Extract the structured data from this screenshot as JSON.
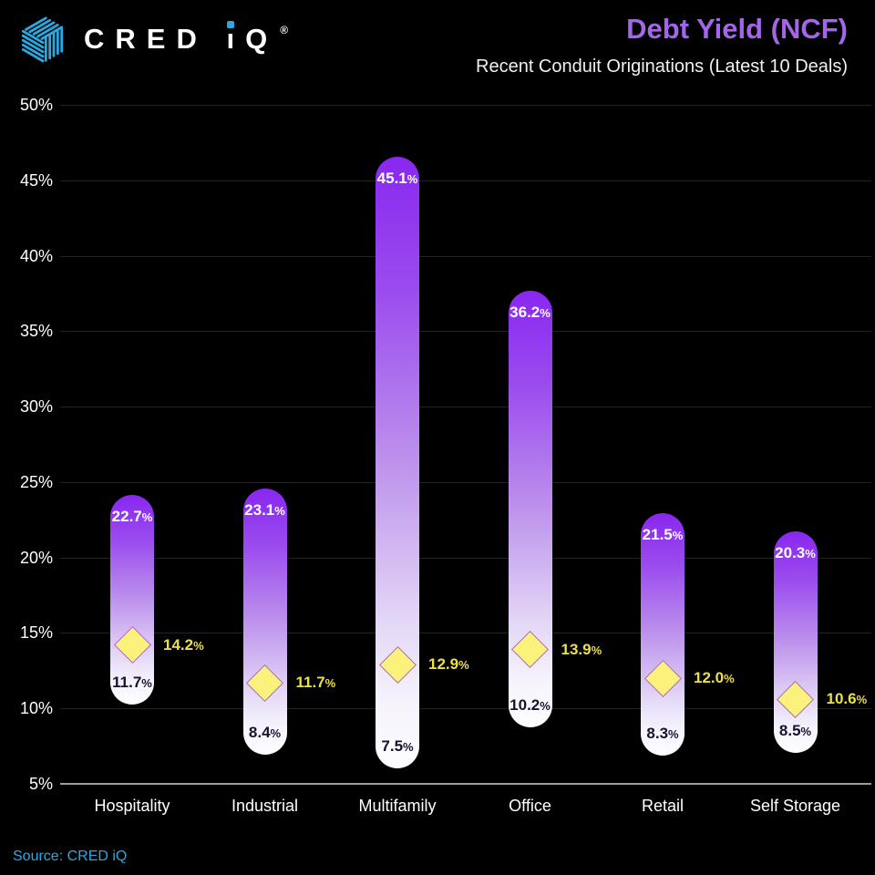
{
  "header": {
    "logo": {
      "icon": "cred-iq-hexagon-logo-icon",
      "cred": "CRED ",
      "i_stem": "ı",
      "q": "Q",
      "registered": "®",
      "accent": "#29A9E1"
    }
  },
  "chart_data": {
    "type": "range-bar",
    "title": "Debt Yield (NCF)",
    "subtitle": "Recent Conduit Originations (Latest 10 Deals)",
    "categories": [
      "Hospitality",
      "Industrial",
      "Multifamily",
      "Office",
      "Retail",
      "Self Storage"
    ],
    "series": [
      {
        "name": "max",
        "values": [
          22.7,
          23.1,
          45.1,
          36.2,
          21.5,
          20.3
        ],
        "labels": [
          "22.7%",
          "23.1%",
          "45.1%",
          "36.2%",
          "21.5%",
          "20.3%"
        ]
      },
      {
        "name": "min",
        "values": [
          11.7,
          8.4,
          7.5,
          10.2,
          8.3,
          8.5
        ],
        "labels": [
          "11.7%",
          "8.4%",
          "7.5%",
          "10.2%",
          "8.3%",
          "8.5%"
        ]
      },
      {
        "name": "diamond",
        "values": [
          14.2,
          11.7,
          12.9,
          13.9,
          12.0,
          10.6
        ],
        "labels": [
          "14.2%",
          "11.7%",
          "12.9%",
          "13.9%",
          "12.0%",
          "10.6%"
        ]
      }
    ],
    "ylim": [
      5,
      50
    ],
    "y_ticks": [
      {
        "value": 50,
        "label": "50%"
      },
      {
        "value": 45,
        "label": "45%"
      },
      {
        "value": 40,
        "label": "40%"
      },
      {
        "value": 35,
        "label": "35%"
      },
      {
        "value": 30,
        "label": "30%"
      },
      {
        "value": 25,
        "label": "25%"
      },
      {
        "value": 20,
        "label": "20%"
      },
      {
        "value": 15,
        "label": "15%"
      },
      {
        "value": 10,
        "label": "10%"
      },
      {
        "value": 5,
        "label": "5%"
      }
    ],
    "grid": true,
    "legend": "none",
    "colors": {
      "background": "#000000",
      "title": "#A466E9",
      "subtitle": "#F0F0F0",
      "bar_gradient_top": "#8927F0",
      "bar_gradient_bottom": "#FDFDFF",
      "max_label": "#FFFFFF",
      "min_label": "#14142E",
      "diamond_fill": "#FAF27B",
      "diamond_stroke": "#AC63D2",
      "diamond_label": "#EDE045",
      "axis_text": "#FFFFFF",
      "gridline": "#232323",
      "baseline": "#9C9C9C"
    }
  },
  "footer": {
    "source": "Source: CRED iQ",
    "source_color": "#29A9E1"
  }
}
